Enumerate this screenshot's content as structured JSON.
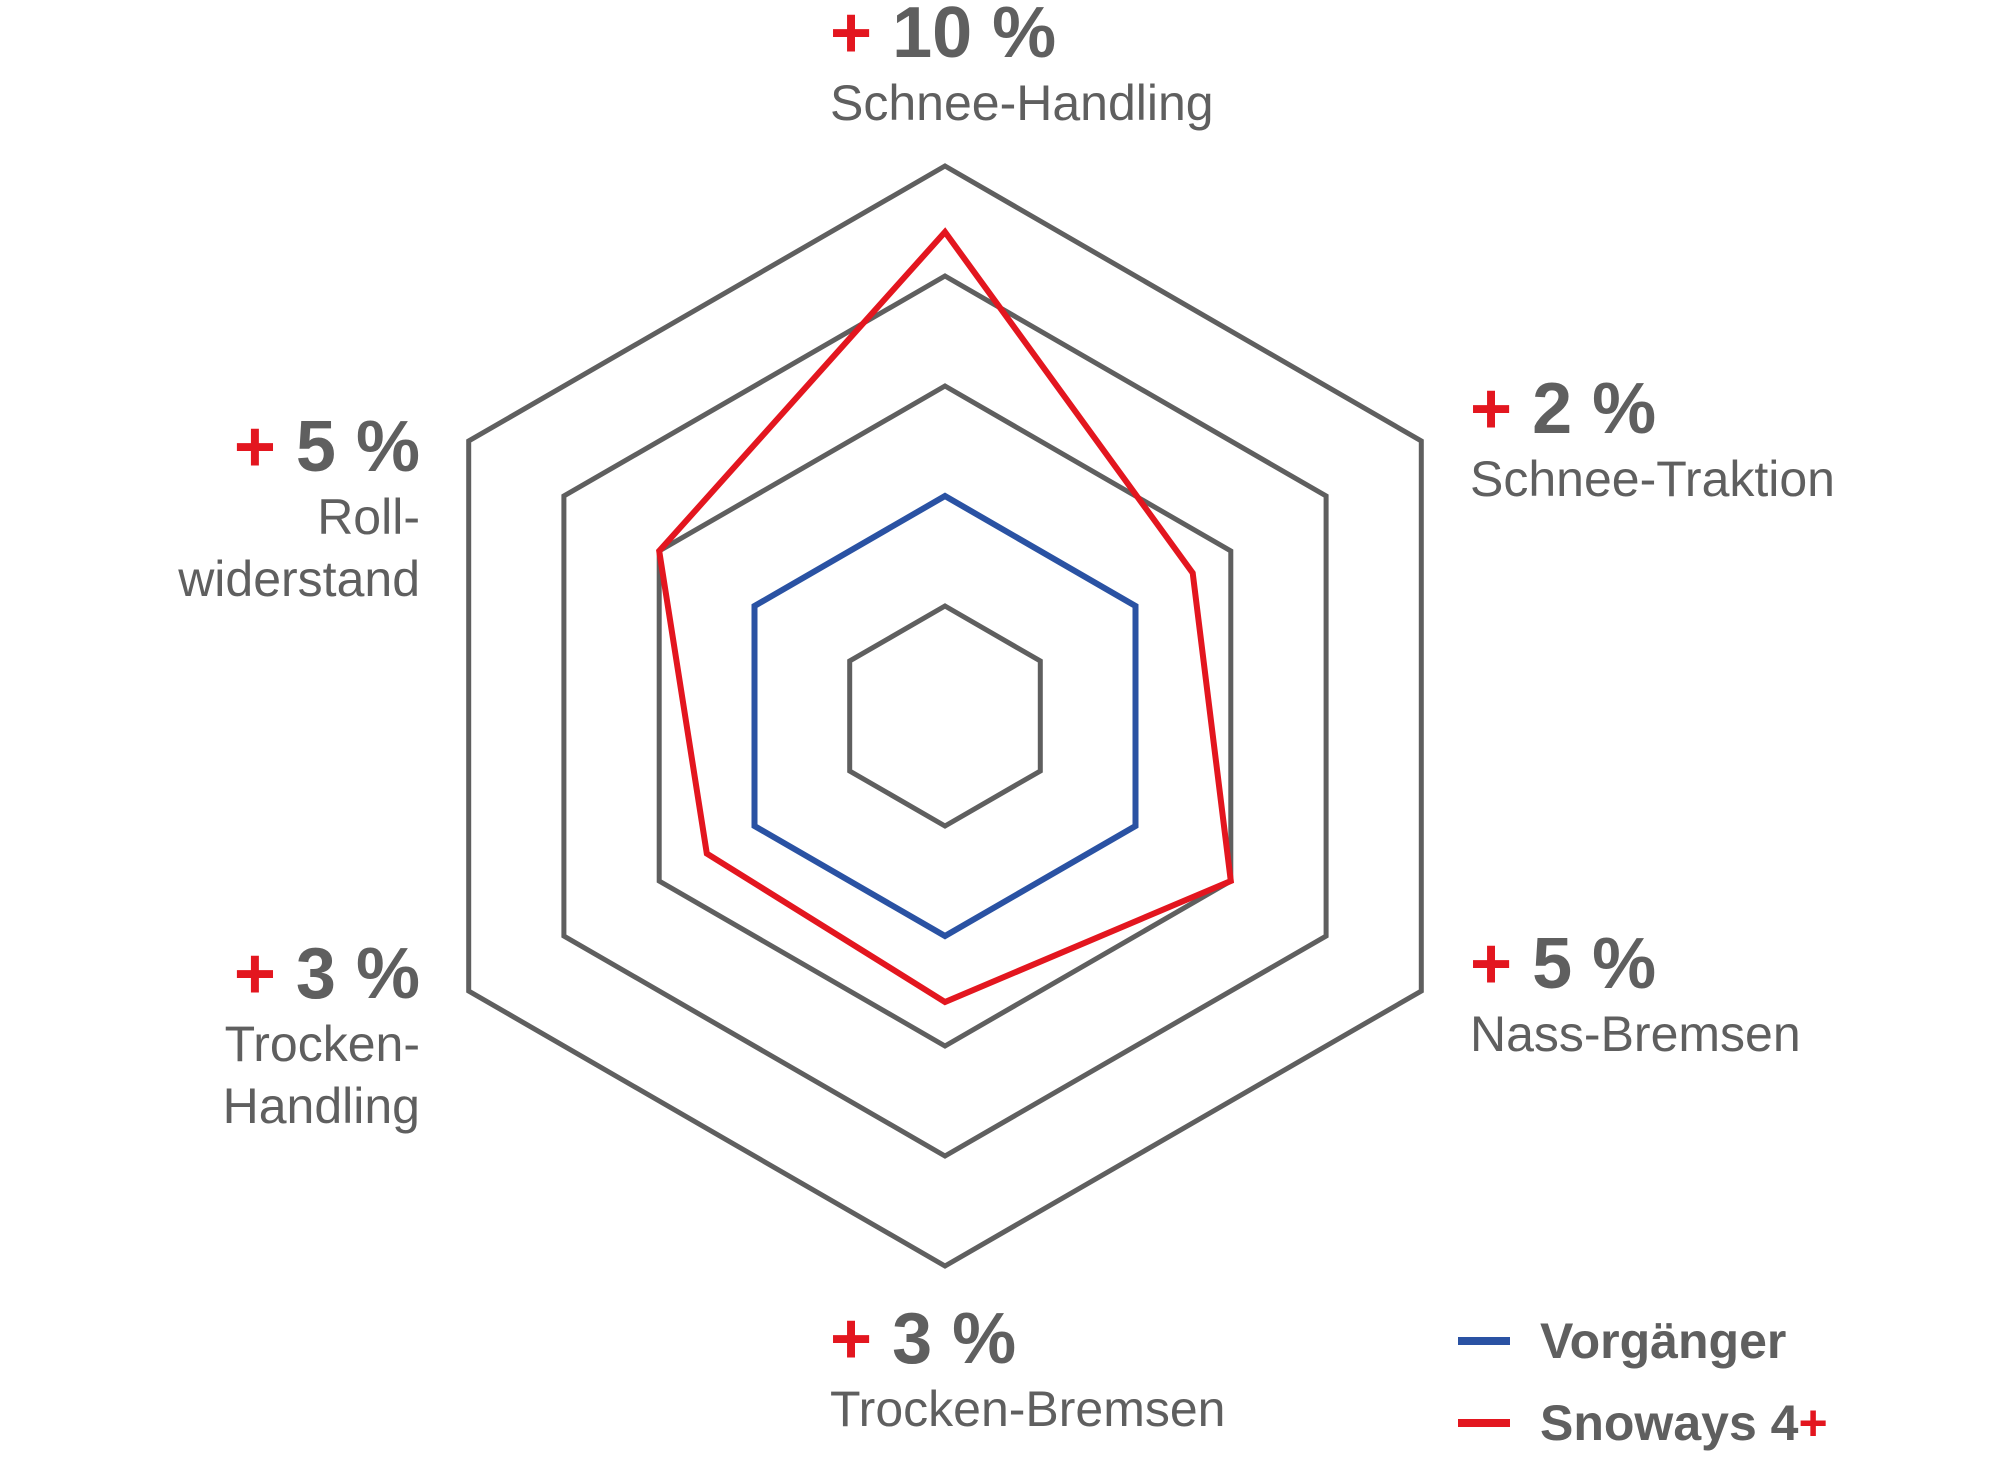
{
  "chart_data": {
    "type": "radar",
    "colors": {
      "grid": "#5f5f5f",
      "text": "#5f5f5f",
      "accent": "#e3161f"
    },
    "levels": 5,
    "categories": [
      {
        "name": "Schnee-Handling",
        "improvement": "10 %"
      },
      {
        "name": "Schnee-Traktion",
        "improvement": "2 %"
      },
      {
        "name": "Nass-Bremsen",
        "improvement": "5 %"
      },
      {
        "name": "Trocken-Bremsen",
        "improvement": "3 %"
      },
      {
        "name": "Trocken-Handling",
        "improvement": "3 %"
      },
      {
        "name": "Roll-widerstand",
        "improvement": "5 %"
      }
    ],
    "series": [
      {
        "name": "Vorgänger",
        "color": "#2a52a3",
        "values": [
          2,
          2,
          2,
          2,
          2,
          2
        ]
      },
      {
        "name": "Snoways 4+",
        "color": "#e3161f",
        "values": [
          4.4,
          2.6,
          3.0,
          2.6,
          2.5,
          3.0
        ]
      }
    ],
    "plus_sign": "+",
    "legend": {
      "vorganger": "Vorgänger",
      "snoways": "Snoways 4",
      "snoways_plus": "+"
    }
  }
}
